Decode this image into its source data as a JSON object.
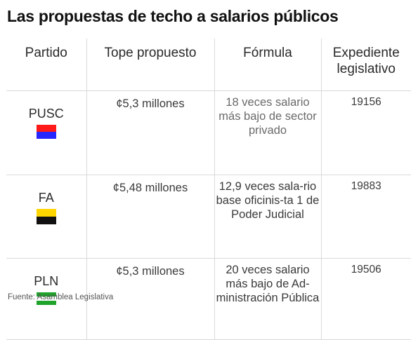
{
  "title": "Las propuestas de techo a salarios públicos",
  "headers": {
    "partido": "Partido",
    "tope": "Tope propuesto",
    "formula": "Fórmula",
    "expediente": "Expediente legislativo"
  },
  "rows": [
    {
      "partido": "PUSC",
      "flag_colors": [
        "#ff1a1a",
        "#2626ff"
      ],
      "tope": "¢5,3 millones",
      "formula": "18 veces salario más bajo de sector privado",
      "expediente": "19156"
    },
    {
      "partido": "FA",
      "flag_colors": [
        "#ffd500",
        "#111111"
      ],
      "tope": "¢5,48 millones",
      "formula": "12,9 veces sala-rio base oficinis-ta 1 de Poder Judicial",
      "expediente": "19883"
    },
    {
      "partido": "PLN",
      "flag_colors": [
        "#1fa32a",
        "#ffffff",
        "#1fa32a"
      ],
      "tope": "¢5,3 millones",
      "formula": "20 veces salario más bajo de Ad-ministración Pública",
      "expediente": "19506"
    }
  ],
  "source": "Fuente: Asamblea Legislativa"
}
